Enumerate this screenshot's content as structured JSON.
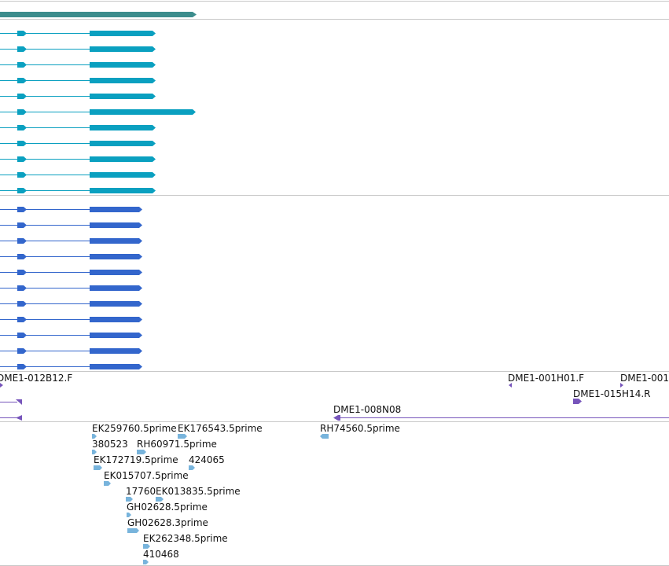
{
  "colors": {
    "background": "#ffffff",
    "divider": "#c8c8c8",
    "top_feature": "#3c8c8c",
    "teal_transcripts": "#0aa0c0",
    "blue_transcripts": "#3366cc",
    "clone_ends": "#7755bb",
    "est_features": "#78b4dc",
    "label_text": "#111111"
  },
  "clone_labels": [
    "DME1-012B12.F",
    "DME1-001H01.F",
    "DME1-001",
    "DME1-015H14.R",
    "DME1-008N08"
  ],
  "est_labels": [
    "EK259760.5prime",
    "EK176543.5prime",
    "RH74560.5prime",
    "380523",
    "RH60971.5prime",
    "EK172719.5prime",
    "424065",
    "EK015707.5prime",
    "17760",
    "EK013835.5prime",
    "GH02628.5prime",
    "GH02628.3prime",
    "EK262348.5prime",
    "410468"
  ]
}
